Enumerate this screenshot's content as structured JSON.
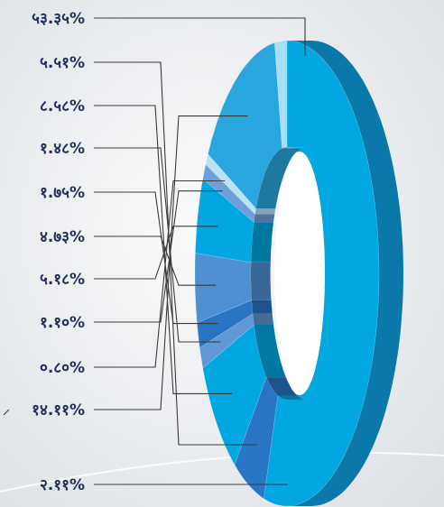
{
  "chart_data": {
    "type": "pie",
    "variant": "3d-donut",
    "title": "",
    "legend": "none",
    "colors": {
      "background": "#eef0f2",
      "leader": "#3a3a3a",
      "label": "#1f2f5a",
      "side": "#0a78a8"
    },
    "slices": [
      {
        "label": "५३.३५%",
        "value": 53.35,
        "color": "#00a7e1"
      },
      {
        "label": "५.५१%",
        "value": 5.51,
        "color": "#2a74c4"
      },
      {
        "label": "८.५८%",
        "value": 8.58,
        "color": "#00a7e1"
      },
      {
        "label": "१.४८%",
        "value": 1.48,
        "color": "#5e96d6"
      },
      {
        "label": "१.७५%",
        "value": 1.75,
        "color": "#2a74c4"
      },
      {
        "label": "४.७३%",
        "value": 4.73,
        "color": "#4f8fd3"
      },
      {
        "label": "५.१८%",
        "value": 5.18,
        "color": "#00a7e1"
      },
      {
        "label": "१.१०%",
        "value": 1.1,
        "color": "#6f9ed8"
      },
      {
        "label": "०.८०%",
        "value": 0.8,
        "color": "#b8e3f7"
      },
      {
        "label": "१४.११%",
        "value": 14.11,
        "color": "#2aa6de"
      },
      {
        "label": "२.११%",
        "value": 2.11,
        "color": "#a8def6"
      }
    ]
  }
}
